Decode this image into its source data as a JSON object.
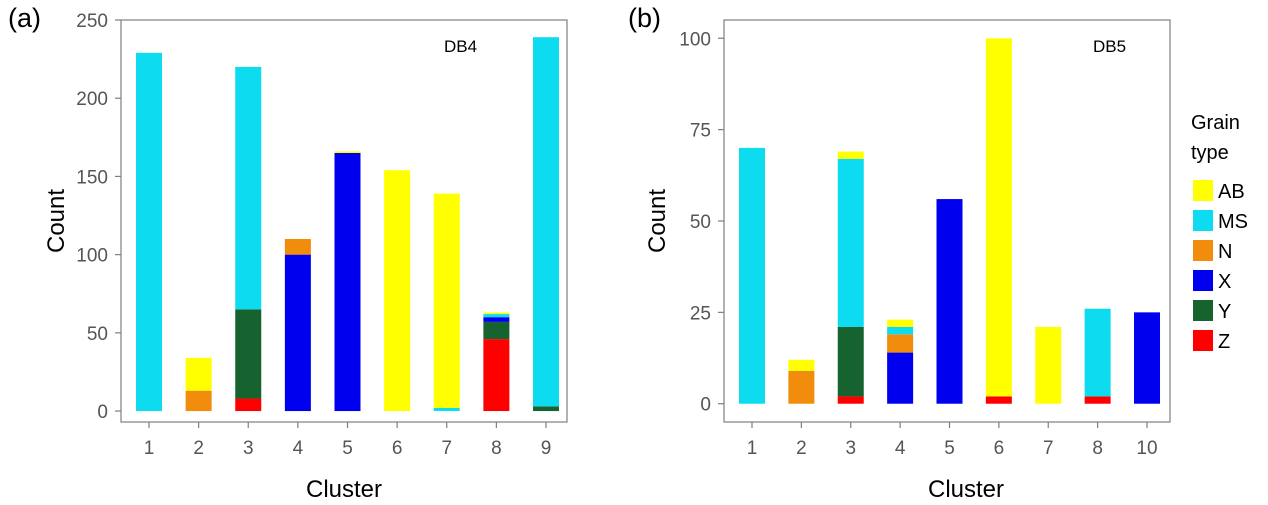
{
  "legend": {
    "title_line1": "Grain",
    "title_line2": "type",
    "items": [
      {
        "name": "AB",
        "color": "#ffff00"
      },
      {
        "name": "MS",
        "color": "#0ddcf0"
      },
      {
        "name": "N",
        "color": "#f28c0d"
      },
      {
        "name": "X",
        "color": "#0000ee"
      },
      {
        "name": "Y",
        "color": "#16632f"
      },
      {
        "name": "Z",
        "color": "#ff0000"
      }
    ]
  },
  "chart_data": [
    {
      "type": "bar",
      "stacked": true,
      "panel_label": "(a)",
      "annotation": "DB4",
      "xlabel": "Cluster",
      "ylabel": "Count",
      "ylim": [
        -7,
        250
      ],
      "yticks": [
        0,
        50,
        100,
        150,
        200,
        250
      ],
      "categories": [
        "1",
        "2",
        "3",
        "4",
        "5",
        "6",
        "7",
        "8",
        "9"
      ],
      "series": [
        {
          "name": "Z",
          "values": [
            0,
            0,
            8,
            0,
            0,
            0,
            0,
            46,
            0
          ]
        },
        {
          "name": "Y",
          "values": [
            0,
            0,
            57,
            0,
            0,
            0,
            0,
            11,
            3
          ]
        },
        {
          "name": "X",
          "values": [
            0,
            0,
            0,
            100,
            165,
            0,
            0,
            3,
            0
          ]
        },
        {
          "name": "N",
          "values": [
            0,
            13,
            0,
            10,
            0,
            0,
            0,
            0,
            0
          ]
        },
        {
          "name": "MS",
          "values": [
            229,
            0,
            155,
            0,
            0,
            0,
            2,
            2,
            236
          ]
        },
        {
          "name": "AB",
          "values": [
            0,
            21,
            0,
            0,
            1,
            154,
            137,
            1,
            0
          ]
        }
      ],
      "grid": false
    },
    {
      "type": "bar",
      "stacked": true,
      "panel_label": "(b)",
      "annotation": "DB5",
      "xlabel": "Cluster",
      "ylabel": "Count",
      "ylim": [
        -5,
        105
      ],
      "yticks": [
        0,
        25,
        50,
        75,
        100
      ],
      "categories": [
        "1",
        "2",
        "3",
        "4",
        "5",
        "6",
        "7",
        "8",
        "10"
      ],
      "series": [
        {
          "name": "Z",
          "values": [
            0,
            0,
            2,
            0,
            0,
            2,
            0,
            2,
            0
          ]
        },
        {
          "name": "Y",
          "values": [
            0,
            0,
            19,
            0,
            0,
            0,
            0,
            0,
            0
          ]
        },
        {
          "name": "X",
          "values": [
            0,
            0,
            0,
            14,
            56,
            0,
            0,
            0,
            25
          ]
        },
        {
          "name": "N",
          "values": [
            0,
            9,
            0,
            5,
            0,
            0,
            0,
            0,
            0
          ]
        },
        {
          "name": "MS",
          "values": [
            70,
            0,
            46,
            2,
            0,
            0,
            0,
            24,
            0
          ]
        },
        {
          "name": "AB",
          "values": [
            0,
            3,
            2,
            2,
            0,
            98,
            21,
            0,
            0
          ]
        }
      ],
      "grid": false
    }
  ]
}
